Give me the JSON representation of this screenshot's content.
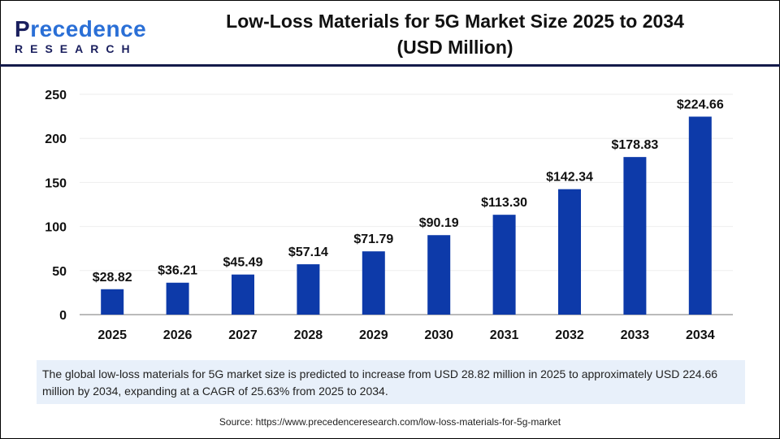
{
  "header": {
    "logo_text": "Precedence",
    "logo_sub": "RESEARCH",
    "title_line1": "Low-Loss Materials for 5G Market Size 2025 to 2034",
    "title_line2": "(USD Million)"
  },
  "chart_data": {
    "type": "bar",
    "categories": [
      "2025",
      "2026",
      "2027",
      "2028",
      "2029",
      "2030",
      "2031",
      "2032",
      "2033",
      "2034"
    ],
    "values": [
      28.82,
      36.21,
      45.49,
      57.14,
      71.79,
      90.19,
      113.3,
      142.34,
      178.83,
      224.66
    ],
    "data_labels": [
      "$28.82",
      "$36.21",
      "$45.49",
      "$57.14",
      "$71.79",
      "$90.19",
      "$113.30",
      "$142.34",
      "$178.83",
      "$224.66"
    ],
    "yticks": [
      "0",
      "50",
      "100",
      "150",
      "200",
      "250"
    ],
    "ylim": [
      0,
      250
    ],
    "grid": true,
    "bar_color": "#0d3aa9"
  },
  "note": "The global low-loss materials for 5G market size is predicted to increase from USD 28.82 million in 2025 to approximately USD 224.66 million by 2034, expanding at a CAGR of 25.63% from 2025 to 2034.",
  "source": "Source: https://www.precedenceresearch.com/low-loss-materials-for-5g-market"
}
